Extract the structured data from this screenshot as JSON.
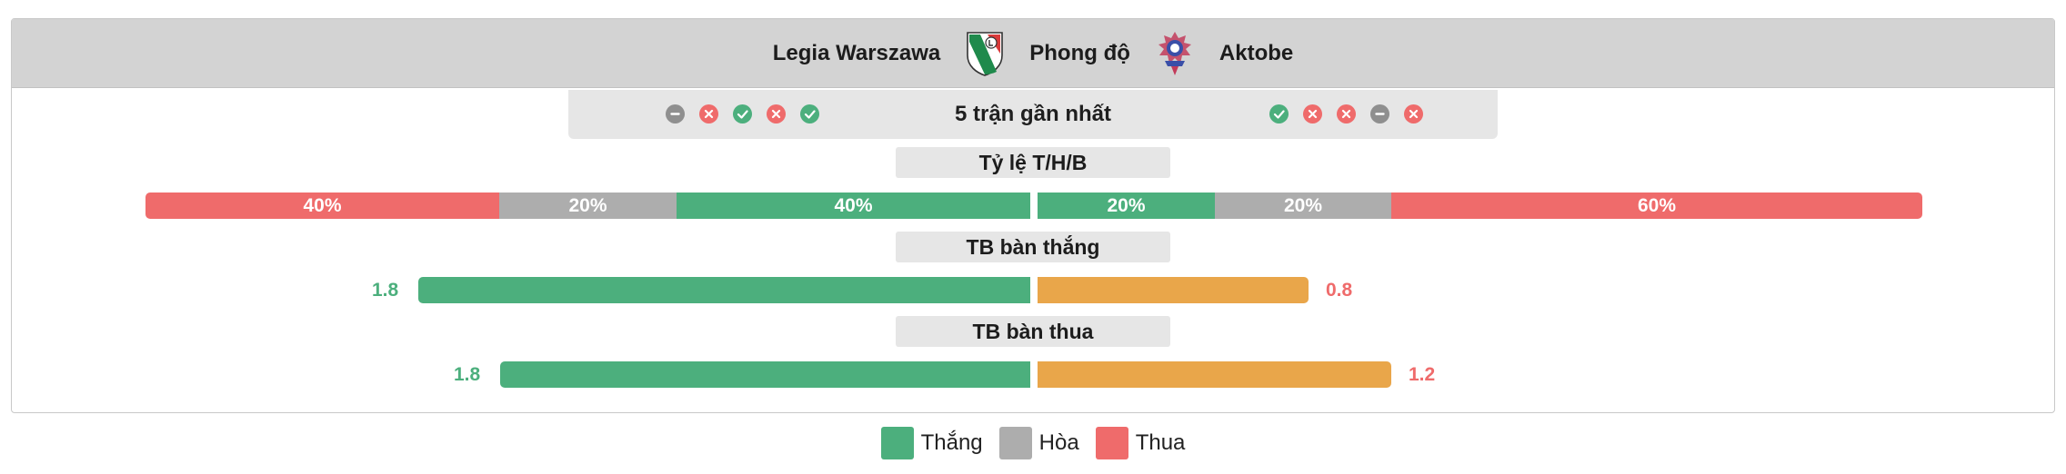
{
  "header": {
    "home_team": "Legia Warszawa",
    "middle_label": "Phong độ",
    "away_team": "Aktobe"
  },
  "colors": {
    "win": "#4caf7d",
    "draw": "#adadad",
    "loss": "#ef6b6b",
    "orange": "#e9a64a"
  },
  "recent_form": {
    "label": "5 trận gần nhất",
    "home": [
      "draw",
      "loss",
      "win",
      "loss",
      "win"
    ],
    "away": [
      "win",
      "loss",
      "loss",
      "draw",
      "loss"
    ]
  },
  "ratio": {
    "label": "Tỷ lệ T/H/B",
    "home": {
      "loss": "40%",
      "draw": "20%",
      "win": "40%"
    },
    "away": {
      "win": "20%",
      "draw": "20%",
      "loss": "60%"
    }
  },
  "goals_scored": {
    "label": "TB bàn thắng",
    "home": "1.8",
    "away": "0.8"
  },
  "goals_conceded": {
    "label": "TB bàn thua",
    "home": "1.8",
    "away": "1.2"
  },
  "legend": {
    "win": "Thắng",
    "draw": "Hòa",
    "loss": "Thua"
  }
}
